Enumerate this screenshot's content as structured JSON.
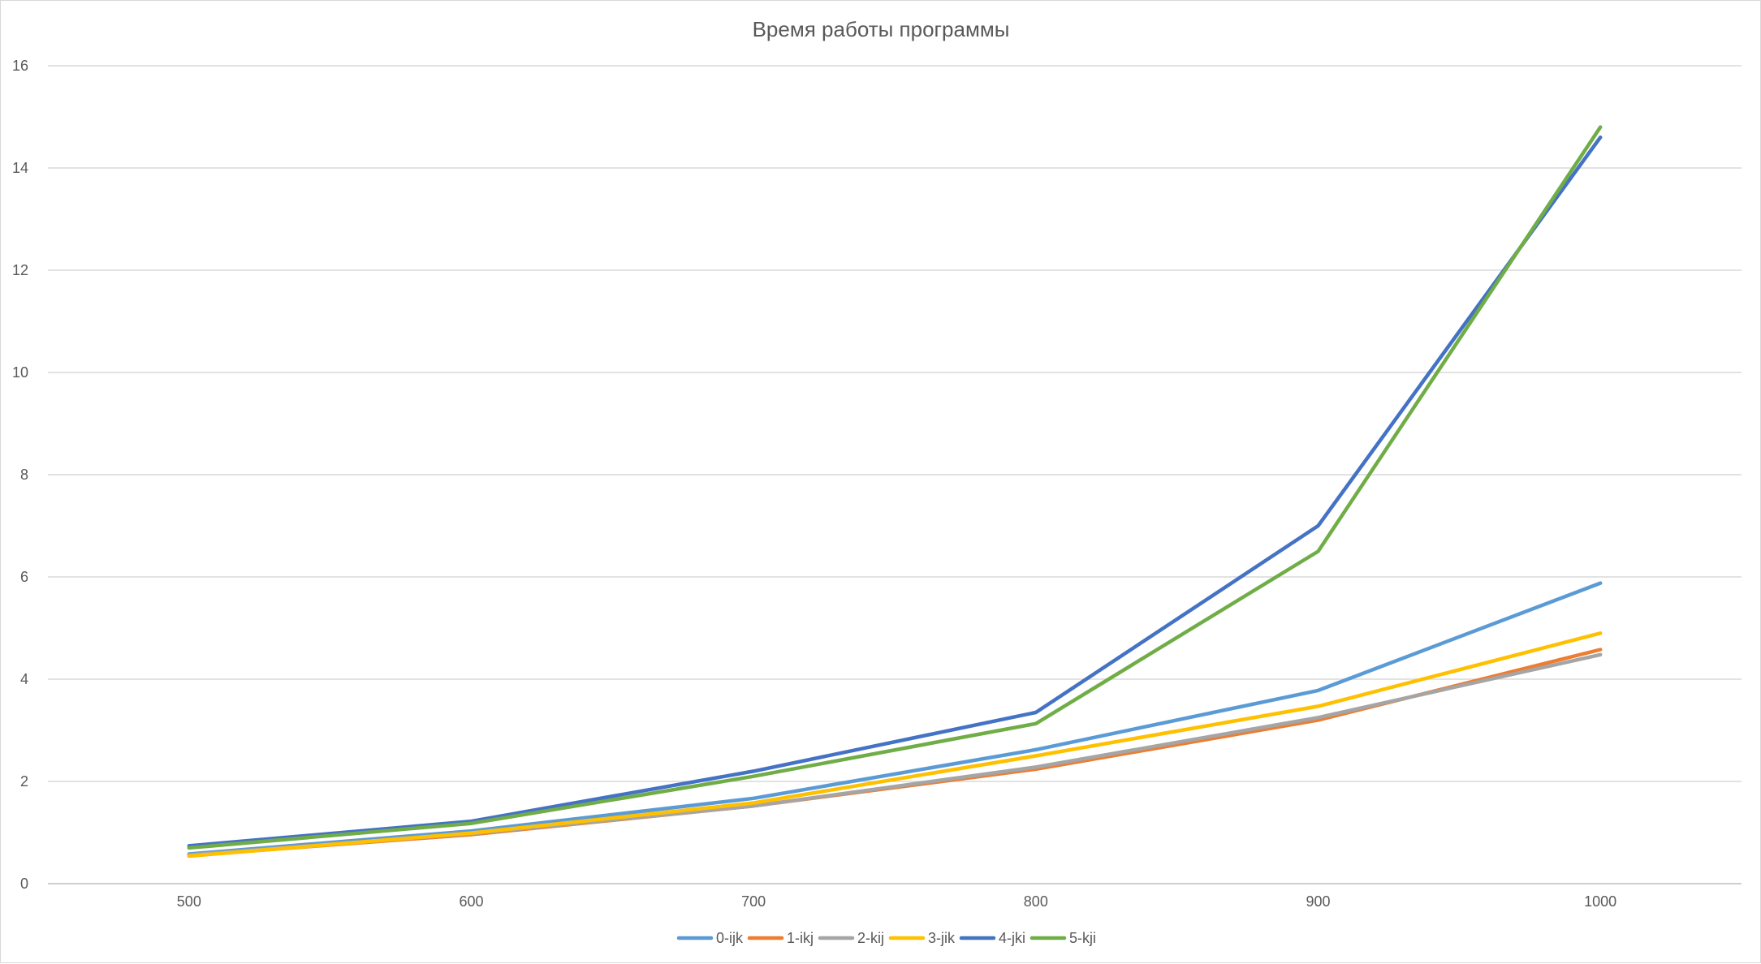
{
  "chart_data": {
    "type": "line",
    "title": "Время работы программы",
    "xlabel": "",
    "ylabel": "",
    "categories": [
      "500",
      "600",
      "700",
      "800",
      "900",
      "1000"
    ],
    "ylim": [
      0,
      16
    ],
    "y_ticks": [
      "0",
      "2",
      "4",
      "6",
      "8",
      "10",
      "12",
      "14",
      "16"
    ],
    "grid": "horizontal",
    "legend_position": "bottom",
    "series": [
      {
        "name": "0-ijk",
        "color": "#5b9bd5",
        "values": [
          0.58,
          1.03,
          1.67,
          2.62,
          3.78,
          5.88
        ]
      },
      {
        "name": "1-ikj",
        "color": "#ed7d31",
        "values": [
          0.55,
          0.96,
          1.52,
          2.24,
          3.2,
          4.58
        ]
      },
      {
        "name": "2-kij",
        "color": "#a5a5a5",
        "values": [
          0.56,
          0.98,
          1.52,
          2.28,
          3.25,
          4.48
        ]
      },
      {
        "name": "3-jik",
        "color": "#ffc000",
        "values": [
          0.54,
          0.99,
          1.58,
          2.5,
          3.47,
          4.9
        ]
      },
      {
        "name": "4-jki",
        "color": "#4472c4",
        "values": [
          0.74,
          1.22,
          2.2,
          3.35,
          7.0,
          14.6
        ]
      },
      {
        "name": "5-kji",
        "color": "#70ad47",
        "values": [
          0.7,
          1.18,
          2.1,
          3.13,
          6.5,
          14.8
        ]
      }
    ]
  }
}
